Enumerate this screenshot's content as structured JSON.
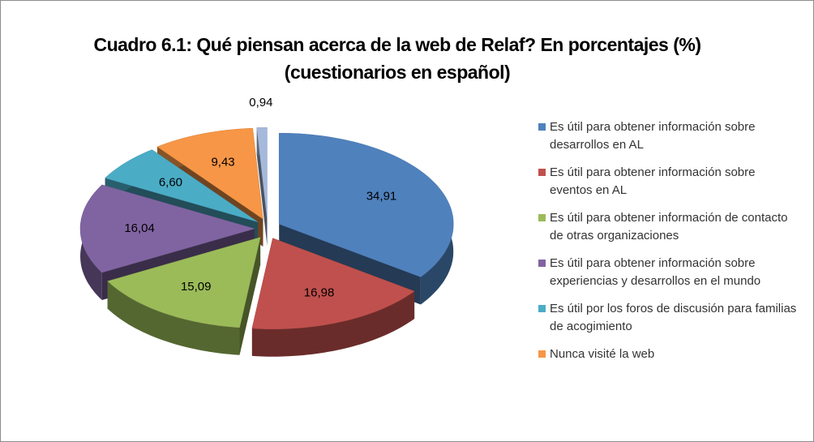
{
  "chart_data": {
    "type": "pie",
    "title": "Cuadro 6.1: Qué piensan acerca de la web de Relaf? En porcentajes (%) (cuestionarios en español)",
    "categories": [
      "Es útil para obtener información sobre desarrollos en AL",
      "Es útil para obtener información sobre eventos en AL",
      "Es útil para obtener información de contacto de otras organizaciones",
      "Es útil para obtener información sobre experiencias y desarrollos en el mundo",
      "Es útil por los foros de discusión para familias de acogimiento",
      "Nunca visité la web",
      null
    ],
    "values": [
      34.91,
      16.98,
      15.09,
      16.04,
      6.6,
      9.43,
      0.94
    ],
    "value_labels": [
      "34,91",
      "16,98",
      "15,09",
      "16,04",
      "6,60",
      "9,43",
      "0,94"
    ],
    "colors": [
      "#4f81bd",
      "#c0504d",
      "#9bbb59",
      "#8064a2",
      "#4bacc6",
      "#f79646",
      "#a5b9dc"
    ],
    "legend": "right"
  }
}
